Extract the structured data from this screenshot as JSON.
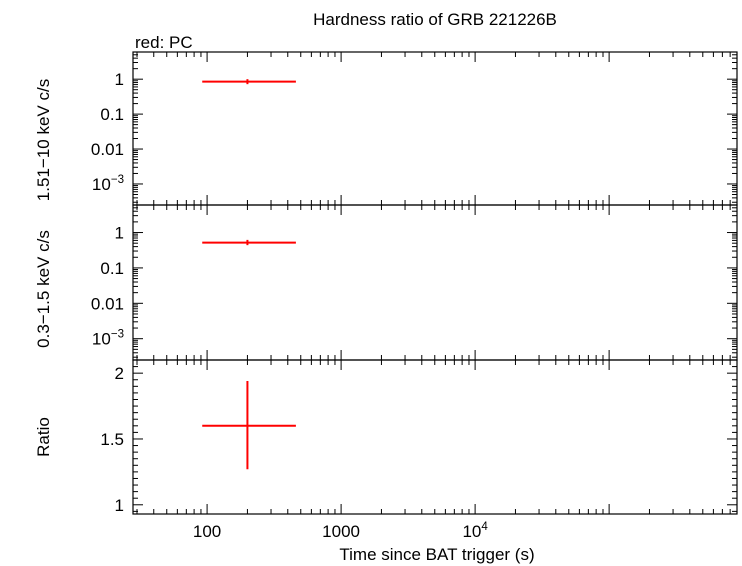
{
  "chart_data": {
    "type": "scatter",
    "title": "Hardness ratio of GRB 221226B",
    "legend_label": "red: PC",
    "xlabel": "Time since BAT trigger (s)",
    "x_scale": "log",
    "xlim": [
      28,
      900000
    ],
    "x_tick_labels": [
      {
        "value": 100,
        "label": "100"
      },
      {
        "value": 1000,
        "label": "1000"
      },
      {
        "value": 10000,
        "label": "10",
        "sup": "4"
      }
    ],
    "panels": [
      {
        "id": "hard",
        "ylabel": "1.51−10 keV c/s",
        "y_scale": "log",
        "ylim": [
          0.00025,
          6
        ],
        "y_tick_labels": [
          {
            "value": 1,
            "label": "1"
          },
          {
            "value": 0.1,
            "label": "0.1"
          },
          {
            "value": 0.01,
            "label": "0.01"
          },
          {
            "value": 0.001,
            "label": "10",
            "sup": "−3"
          }
        ],
        "series": [
          {
            "name": "PC",
            "color": "#ff0000",
            "points": [
              {
                "x": 200,
                "xlo": 92,
                "xhi": 460,
                "y": 0.85,
                "ylo": 0.72,
                "yhi": 1.0
              }
            ]
          }
        ]
      },
      {
        "id": "soft",
        "ylabel": "0.3−1.5 keV c/s",
        "y_scale": "log",
        "ylim": [
          0.00025,
          6
        ],
        "y_tick_labels": [
          {
            "value": 1,
            "label": "1"
          },
          {
            "value": 0.1,
            "label": "0.1"
          },
          {
            "value": 0.01,
            "label": "0.01"
          },
          {
            "value": 0.001,
            "label": "10",
            "sup": "−3"
          }
        ],
        "series": [
          {
            "name": "PC",
            "color": "#ff0000",
            "points": [
              {
                "x": 200,
                "xlo": 92,
                "xhi": 460,
                "y": 0.52,
                "ylo": 0.44,
                "yhi": 0.62
              }
            ]
          }
        ]
      },
      {
        "id": "ratio",
        "ylabel": "Ratio",
        "y_scale": "linear",
        "ylim": [
          0.93,
          2.1
        ],
        "y_tick_labels": [
          {
            "value": 1,
            "label": "1"
          },
          {
            "value": 1.5,
            "label": "1.5"
          },
          {
            "value": 2,
            "label": "2"
          }
        ],
        "series": [
          {
            "name": "PC",
            "color": "#ff0000",
            "points": [
              {
                "x": 200,
                "xlo": 92,
                "xhi": 460,
                "y": 1.6,
                "ylo": 1.27,
                "yhi": 1.94
              }
            ]
          }
        ]
      }
    ]
  }
}
